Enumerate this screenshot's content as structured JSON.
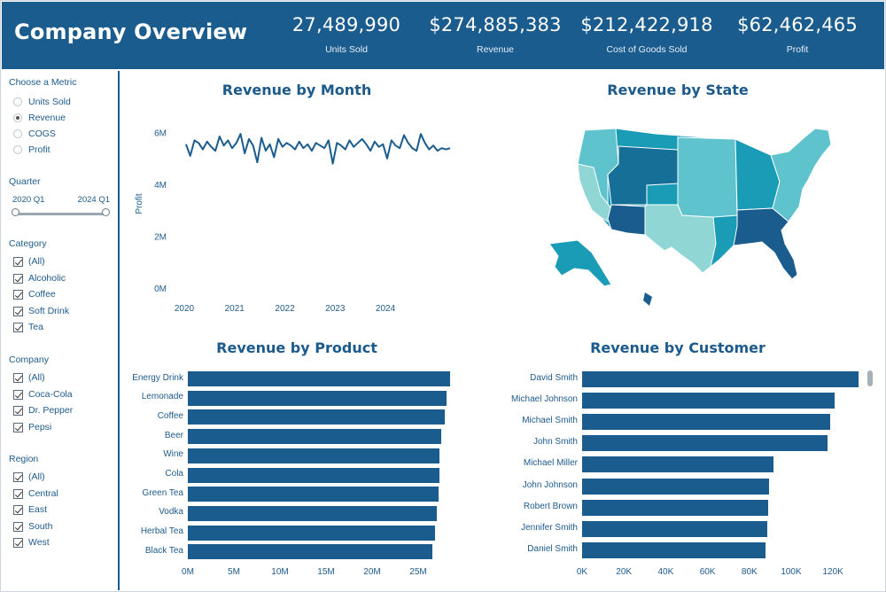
{
  "header": {
    "title": "Company Overview",
    "kpis": [
      {
        "value": "27,489,990",
        "label": "Units Sold"
      },
      {
        "value": "$274,885,383",
        "label": "Revenue"
      },
      {
        "value": "$212,422,918",
        "label": "Cost of Goods Sold"
      },
      {
        "value": "$62,462,465",
        "label": "Profit"
      }
    ]
  },
  "filters": {
    "metric": {
      "title": "Choose a Metric",
      "options": [
        "Units Sold",
        "Revenue",
        "COGS",
        "Profit"
      ],
      "selected": "Revenue"
    },
    "quarter": {
      "title": "Quarter",
      "from": "2020 Q1",
      "to": "2024 Q1"
    },
    "category": {
      "title": "Category",
      "options": [
        "(All)",
        "Alcoholic",
        "Coffee",
        "Soft Drink",
        "Tea"
      ]
    },
    "company": {
      "title": "Company",
      "options": [
        "(All)",
        "Coca-Cola",
        "Dr. Pepper",
        "Pepsi"
      ]
    },
    "region": {
      "title": "Region",
      "options": [
        "(All)",
        "Central",
        "East",
        "South",
        "West"
      ]
    }
  },
  "panels": {
    "month_title": "Revenue by Month",
    "state_title": "Revenue by State",
    "product_title": "Revenue by Product",
    "customer_title": "Revenue by Customer"
  },
  "colors": {
    "primary": "#1b5c8f",
    "light": "#5ec3cc",
    "mid": "#1a9bb6",
    "pale": "#8fd6d4"
  },
  "chart_data": [
    {
      "type": "line",
      "title": "Revenue by Month",
      "ylabel": "Profit",
      "ylim": [
        0,
        6.5
      ],
      "yticks": [
        "0M",
        "2M",
        "4M",
        "6M"
      ],
      "xticks": [
        "2020",
        "2021",
        "2022",
        "2023",
        "2024"
      ],
      "x_start_year": 2020,
      "values": [
        5.55,
        5.1,
        5.7,
        5.6,
        5.35,
        5.65,
        5.45,
        5.3,
        5.85,
        5.5,
        5.7,
        5.4,
        5.6,
        5.95,
        5.2,
        5.75,
        5.5,
        4.85,
        5.8,
        5.3,
        5.55,
        5.05,
        5.75,
        5.45,
        5.6,
        5.5,
        5.35,
        5.65,
        5.4,
        5.55,
        5.3,
        5.6,
        5.5,
        5.4,
        5.7,
        4.8,
        5.6,
        5.5,
        5.35,
        5.7,
        5.45,
        5.6,
        5.75,
        5.55,
        5.3,
        5.65,
        5.45,
        5.55,
        5.0,
        5.7,
        5.5,
        5.4,
        5.9,
        5.6,
        5.4,
        5.3,
        5.95,
        5.6,
        5.35,
        5.5,
        5.3,
        5.4,
        5.35,
        5.4
      ]
    },
    {
      "type": "bar",
      "title": "Revenue by Product",
      "categories": [
        "Energy Drink",
        "Lemonade",
        "Coffee",
        "Beer",
        "Wine",
        "Cola",
        "Green Tea",
        "Vodka",
        "Herbal Tea",
        "Black Tea"
      ],
      "values": [
        28.6,
        28.2,
        28.0,
        27.6,
        27.4,
        27.4,
        27.3,
        27.1,
        26.9,
        26.6
      ],
      "xticks": [
        "0M",
        "5M",
        "10M",
        "15M",
        "20M",
        "25M"
      ],
      "xlim": [
        0,
        30
      ]
    },
    {
      "type": "bar",
      "title": "Revenue by Customer",
      "categories": [
        "David Smith",
        "Michael Johnson",
        "Michael Smith",
        "John Smith",
        "Michael Miller",
        "John Johnson",
        "Robert Brown",
        "Jennifer Smith",
        "Daniel Smith"
      ],
      "values": [
        129000,
        118000,
        116000,
        114500,
        89500,
        87500,
        87000,
        86500,
        85500
      ],
      "xticks": [
        "0K",
        "20K",
        "40K",
        "60K",
        "80K",
        "100K",
        "120K"
      ],
      "xlim": [
        0,
        130000
      ]
    }
  ]
}
